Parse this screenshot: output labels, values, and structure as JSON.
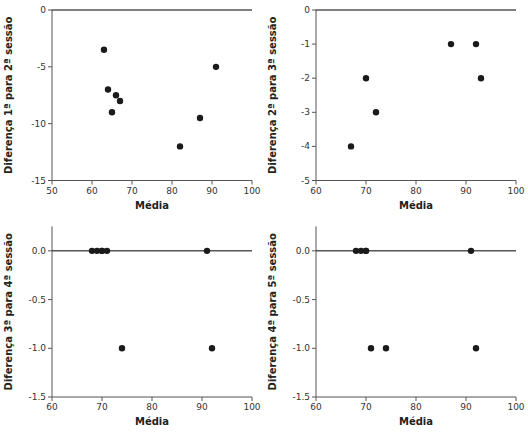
{
  "chart_data": [
    {
      "type": "scatter",
      "x": [
        63,
        64,
        65,
        66,
        67,
        82,
        87,
        91
      ],
      "values": [
        -3.5,
        -7,
        -9,
        -7.5,
        -8,
        -12,
        -9.5,
        -5
      ],
      "xlim": [
        50,
        100
      ],
      "ylim": [
        -15,
        0
      ],
      "xticks": [
        50,
        60,
        70,
        80,
        90,
        100
      ],
      "yticks": [
        0,
        -5,
        -10,
        -15
      ],
      "hline": 0,
      "color": "#1a1a1a",
      "x_label": "Média",
      "y_label": "Diferença 1ª para 2ª sessão"
    },
    {
      "type": "scatter",
      "x": [
        67,
        70,
        72,
        87,
        92,
        93
      ],
      "values": [
        -4,
        -2,
        -3,
        -1,
        -1,
        -2
      ],
      "xlim": [
        60,
        100
      ],
      "ylim": [
        -5,
        0
      ],
      "xticks": [
        60,
        70,
        80,
        90,
        100
      ],
      "yticks": [
        0,
        -1,
        -2,
        -3,
        -4,
        -5
      ],
      "hline": 0,
      "color": "#1a1a1a",
      "x_label": "Média",
      "y_label": "Diferença 2ª para 3ª sessão"
    },
    {
      "type": "scatter",
      "x": [
        68,
        69,
        70,
        70,
        71,
        74,
        91,
        92
      ],
      "values": [
        0,
        0,
        0,
        0,
        0,
        -1,
        0,
        -1
      ],
      "xlim": [
        60,
        100
      ],
      "ylim": [
        -1.5,
        0.25
      ],
      "xticks": [
        60,
        70,
        80,
        90,
        100
      ],
      "yticks": [
        {
          "value": 0,
          "label": "0.0"
        },
        -0.5,
        {
          "value": -1,
          "label": "-1.0"
        },
        -1.5
      ],
      "hline": 0,
      "color": "#1a1a1a",
      "x_label": "Média",
      "y_label": "Diferença 3ª para 4ª sessão"
    },
    {
      "type": "scatter",
      "x": [
        68,
        69,
        70,
        70,
        71,
        74,
        91,
        92
      ],
      "values": [
        0,
        0,
        0,
        0,
        -1,
        -1,
        0,
        -1
      ],
      "xlim": [
        60,
        100
      ],
      "ylim": [
        -1.5,
        0.25
      ],
      "xticks": [
        60,
        70,
        80,
        90,
        100
      ],
      "yticks": [
        {
          "value": 0,
          "label": "0.0"
        },
        -0.5,
        {
          "value": -1,
          "label": "-1.0"
        },
        -1.5
      ],
      "hline": 0,
      "color": "#1a1a1a",
      "x_label": "Média",
      "y_label": "Diferença 4ª para 5ª sessão"
    }
  ]
}
